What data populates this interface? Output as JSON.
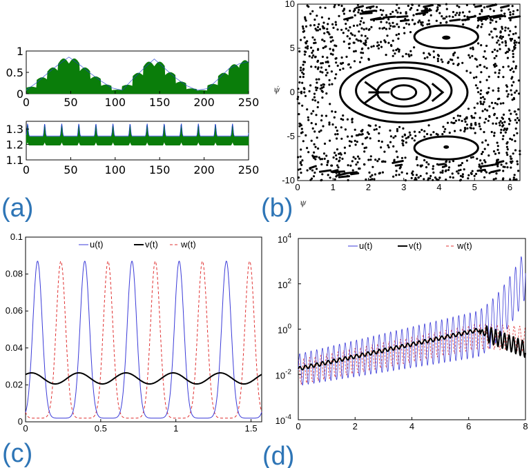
{
  "chart_data": [
    {
      "id": "a-top",
      "type": "area",
      "x_range": [
        0,
        250
      ],
      "ylim": [
        0,
        1
      ],
      "xticks": [
        "0",
        "50",
        "100",
        "150",
        "200",
        "250"
      ],
      "yticks": [
        "0",
        "0.5",
        "1"
      ],
      "series": [
        {
          "name": "green envelope",
          "color": "#0a7d0a",
          "x": [
            0,
            12,
            24,
            36,
            48,
            60,
            72,
            84,
            96,
            108,
            120,
            132,
            144,
            156,
            168,
            180,
            192,
            204,
            216,
            228,
            240,
            250
          ],
          "values": [
            0.06,
            0.26,
            0.5,
            0.72,
            0.92,
            0.72,
            0.5,
            0.3,
            0.12,
            0.06,
            0.35,
            0.62,
            0.87,
            0.62,
            0.38,
            0.18,
            0.06,
            0.1,
            0.35,
            0.62,
            0.75,
            0.8
          ]
        },
        {
          "name": "blue line",
          "color": "#1f3fd0"
        }
      ]
    },
    {
      "id": "a-bottom",
      "type": "area",
      "x_range": [
        0,
        250
      ],
      "ylim": [
        1.1,
        1.35
      ],
      "xticks": [
        "0",
        "50",
        "100",
        "150",
        "200",
        "250"
      ],
      "yticks": [
        "1.1",
        "1.2",
        "1.3"
      ],
      "period": 19.2,
      "base": 1.19,
      "peak": 1.33,
      "series": [
        {
          "name": "green band",
          "color": "#0a7d0a"
        },
        {
          "name": "blue line",
          "color": "#1f3fd0"
        }
      ]
    },
    {
      "id": "b",
      "type": "scatter",
      "xlim": [
        0,
        6.283
      ],
      "ylim": [
        -10,
        10
      ],
      "xticks": [
        "0",
        "1",
        "2",
        "3",
        "4",
        "5",
        "6"
      ],
      "yticks": [
        "10",
        "5",
        "0",
        "-5",
        "-10"
      ],
      "xlabel": "ψ",
      "ylabel": "ψ̇",
      "closed_orbits": [
        {
          "cx": 3.0,
          "cy": 0.0,
          "rx": 0.35,
          "ry": 0.8
        },
        {
          "cx": 3.0,
          "cy": 0.0,
          "rx": 0.75,
          "ry": 1.6
        },
        {
          "cx": 3.0,
          "cy": 0.2,
          "rx": 1.35,
          "ry": 2.6
        },
        {
          "cx": 3.0,
          "cy": 0.0,
          "rx": 1.8,
          "ry": 3.4
        },
        {
          "cx": 4.2,
          "cy": 6.3,
          "rx": 0.9,
          "ry": 1.3
        },
        {
          "cx": 4.2,
          "cy": -6.3,
          "rx": 0.9,
          "ry": 1.3
        }
      ]
    },
    {
      "id": "c",
      "type": "line",
      "xlim": [
        0,
        1.571
      ],
      "ylim": [
        0,
        0.1
      ],
      "xticks": [
        "0",
        "0.5",
        "1",
        "1.5"
      ],
      "yticks": [
        "0",
        "0.02",
        "0.04",
        "0.06",
        "0.08",
        "0.1"
      ],
      "period": 0.314,
      "peak": 0.087,
      "trough": 0.002,
      "series": [
        {
          "name": "u(t)",
          "color": "#3a3ad8",
          "style": "solid",
          "phase": 0.08
        },
        {
          "name": "v(t)",
          "color": "#000000",
          "style": "solid",
          "mean": 0.0235,
          "amp": 0.003
        },
        {
          "name": "w(t)",
          "color": "#e03030",
          "style": "dashed",
          "phase": 0.235
        }
      ],
      "legend": "top"
    },
    {
      "id": "d",
      "type": "line",
      "yscale": "log",
      "xlim": [
        0,
        8
      ],
      "ylim_log10": [
        -4,
        4
      ],
      "xticks": [
        "0",
        "2",
        "4",
        "6",
        "8"
      ],
      "yticks": [
        {
          "base": "10",
          "exp": "4"
        },
        {
          "base": "10",
          "exp": "2"
        },
        {
          "base": "10",
          "exp": "0"
        },
        {
          "base": "10",
          "exp": "-2"
        },
        {
          "base": "10",
          "exp": "-4"
        }
      ],
      "series": [
        {
          "name": "u(t)",
          "color": "#3a3ad8",
          "style": "solid"
        },
        {
          "name": "v(t)",
          "color": "#000000",
          "style": "solid"
        },
        {
          "name": "w(t)",
          "color": "#e03030",
          "style": "dashed"
        }
      ],
      "legend": "top"
    }
  ],
  "labels": {
    "a": "(a)",
    "b": "(b)",
    "c": "(c)",
    "d": "(d)"
  }
}
